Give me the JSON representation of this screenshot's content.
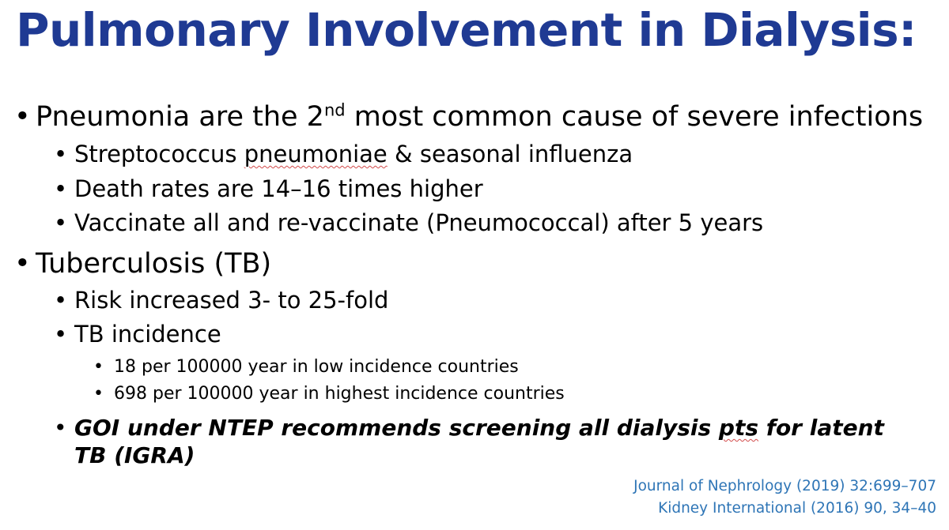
{
  "slide": {
    "title": "Pulmonary Involvement in Dialysis:",
    "bullet_char": "•",
    "pneumonia": {
      "text_before": "Pneumonia are the 2",
      "superscript": "nd",
      "text_after": " most common cause of severe infections",
      "sub": {
        "strep_before": "Streptococcus ",
        "strep_word": "pneumoniae",
        "strep_after": " & seasonal influenza",
        "death": "Death rates are 14–16 times higher",
        "vaccinate": "Vaccinate all and re-vaccinate (Pneumococcal) after 5 years"
      }
    },
    "tb": {
      "heading": "Tuberculosis (TB)",
      "risk": "Risk increased 3- to 25-fold",
      "incidence": "TB incidence",
      "incidence_items": [
        "18 per 100000 year in low incidence countries",
        "698 per 100000 year in highest incidence countries"
      ],
      "goi_before": "GOI under NTEP recommends screening all dialysis ",
      "goi_word": "pts",
      "goi_after": " for latent",
      "goi_line2": "TB (IGRA)"
    },
    "references": [
      "Journal of Nephrology (2019) 32:699–707",
      "Kidney International (2016) 90, 34–40"
    ],
    "colors": {
      "title": "#1f3a93",
      "reference": "#2e75b6",
      "spellcheck_underline": "#d24a4a"
    }
  }
}
